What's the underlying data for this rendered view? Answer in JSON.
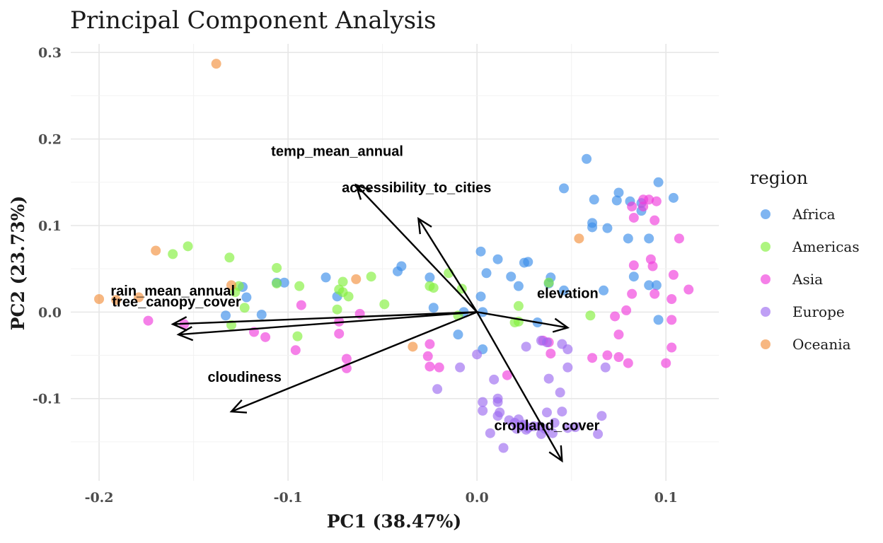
{
  "chart_data": {
    "type": "scatter",
    "title": "Principal Component Analysis",
    "xlabel": "PC1 (38.47%)",
    "ylabel": "PC2 (23.73%)",
    "xlim": [
      -0.215,
      0.128
    ],
    "ylim": [
      -0.195,
      0.31
    ],
    "x_ticks": [
      -0.2,
      -0.1,
      0.0,
      0.1
    ],
    "x_tick_labels": [
      "-0.2",
      "-0.1",
      "0.0",
      "0.1"
    ],
    "y_ticks": [
      -0.1,
      0.0,
      0.1,
      0.2,
      0.3
    ],
    "y_tick_labels": [
      "-0.1",
      "0.0",
      "0.1",
      "0.2",
      "0.3"
    ],
    "grid": true,
    "legend": {
      "title": "region",
      "position": "right"
    },
    "point_opacity": 0.65,
    "series": [
      {
        "name": "Africa",
        "color": "#3b8eea",
        "points": [
          [
            0.058,
            0.177
          ],
          [
            0.096,
            0.15
          ],
          [
            0.104,
            0.132
          ],
          [
            0.046,
            0.143
          ],
          [
            0.075,
            0.138
          ],
          [
            0.062,
            0.13
          ],
          [
            0.074,
            0.129
          ],
          [
            0.081,
            0.128
          ],
          [
            0.087,
            0.126
          ],
          [
            0.087,
            0.117
          ],
          [
            0.061,
            0.103
          ],
          [
            0.061,
            0.098
          ],
          [
            0.069,
            0.097
          ],
          [
            0.08,
            0.085
          ],
          [
            0.091,
            0.085
          ],
          [
            0.096,
            -0.009
          ],
          [
            0.002,
            0.07
          ],
          [
            0.011,
            0.061
          ],
          [
            0.005,
            0.045
          ],
          [
            0.025,
            0.057
          ],
          [
            0.027,
            0.058
          ],
          [
            0.039,
            0.04
          ],
          [
            -0.04,
            0.053
          ],
          [
            -0.042,
            0.047
          ],
          [
            -0.08,
            0.04
          ],
          [
            -0.025,
            0.04
          ],
          [
            -0.023,
            0.005
          ],
          [
            0.018,
            0.041
          ],
          [
            0.022,
            0.03
          ],
          [
            0.038,
            0.033
          ],
          [
            0.046,
            0.025
          ],
          [
            0.067,
            0.025
          ],
          [
            0.083,
            0.041
          ],
          [
            0.091,
            0.031
          ],
          [
            0.095,
            0.031
          ],
          [
            -0.074,
            0.018
          ],
          [
            -0.102,
            0.034
          ],
          [
            -0.106,
            0.034
          ],
          [
            -0.124,
            0.029
          ],
          [
            -0.133,
            -0.004
          ],
          [
            -0.114,
            -0.003
          ],
          [
            -0.122,
            0.017
          ],
          [
            -0.007,
            0.0
          ],
          [
            0.002,
            0.018
          ],
          [
            0.003,
            0.0
          ],
          [
            -0.01,
            -0.026
          ],
          [
            0.003,
            -0.043
          ],
          [
            0.032,
            -0.012
          ]
        ]
      },
      {
        "name": "Americas",
        "color": "#83f03c",
        "points": [
          [
            -0.161,
            0.067
          ],
          [
            -0.153,
            0.076
          ],
          [
            -0.131,
            0.063
          ],
          [
            -0.106,
            0.051
          ],
          [
            -0.106,
            0.033
          ],
          [
            -0.094,
            0.03
          ],
          [
            -0.071,
            0.035
          ],
          [
            -0.073,
            0.026
          ],
          [
            -0.071,
            0.023
          ],
          [
            -0.056,
            0.041
          ],
          [
            -0.068,
            0.018
          ],
          [
            -0.049,
            0.009
          ],
          [
            -0.025,
            0.03
          ],
          [
            -0.023,
            0.028
          ],
          [
            -0.015,
            0.045
          ],
          [
            -0.008,
            0.027
          ],
          [
            -0.01,
            -0.004
          ],
          [
            -0.126,
            0.03
          ],
          [
            -0.128,
            0.023
          ],
          [
            -0.123,
            0.005
          ],
          [
            -0.13,
            -0.015
          ],
          [
            -0.095,
            -0.028
          ],
          [
            -0.074,
            0.003
          ],
          [
            0.022,
            0.007
          ],
          [
            0.022,
            -0.011
          ],
          [
            0.02,
            -0.012
          ],
          [
            0.06,
            -0.004
          ],
          [
            0.038,
            0.034
          ]
        ]
      },
      {
        "name": "Asia",
        "color": "#f03cdc",
        "points": [
          [
            0.088,
            0.13
          ],
          [
            0.091,
            0.13
          ],
          [
            0.095,
            0.128
          ],
          [
            0.082,
            0.122
          ],
          [
            0.088,
            0.122
          ],
          [
            0.083,
            0.109
          ],
          [
            0.094,
            0.106
          ],
          [
            0.107,
            0.085
          ],
          [
            0.092,
            0.061
          ],
          [
            0.083,
            0.054
          ],
          [
            0.093,
            0.053
          ],
          [
            0.104,
            0.043
          ],
          [
            0.112,
            0.026
          ],
          [
            0.082,
            0.021
          ],
          [
            0.094,
            0.021
          ],
          [
            0.079,
            0.002
          ],
          [
            0.103,
            0.015
          ],
          [
            0.073,
            -0.005
          ],
          [
            0.103,
            -0.009
          ],
          [
            0.075,
            -0.026
          ],
          [
            0.103,
            -0.041
          ],
          [
            0.1,
            -0.059
          ],
          [
            0.061,
            -0.053
          ],
          [
            0.069,
            -0.05
          ],
          [
            0.075,
            -0.052
          ],
          [
            0.08,
            -0.059
          ],
          [
            0.038,
            -0.035
          ],
          [
            0.035,
            -0.033
          ],
          [
            0.039,
            -0.048
          ],
          [
            0.016,
            -0.073
          ],
          [
            -0.025,
            -0.037
          ],
          [
            -0.026,
            -0.051
          ],
          [
            -0.025,
            -0.063
          ],
          [
            -0.02,
            -0.064
          ],
          [
            -0.069,
            -0.054
          ],
          [
            -0.069,
            -0.065
          ],
          [
            -0.073,
            -0.025
          ],
          [
            -0.073,
            -0.011
          ],
          [
            -0.062,
            -0.002
          ],
          [
            -0.093,
            0.008
          ],
          [
            -0.096,
            -0.044
          ],
          [
            -0.112,
            -0.029
          ],
          [
            -0.118,
            -0.023
          ],
          [
            -0.155,
            -0.014
          ],
          [
            -0.174,
            -0.01
          ]
        ]
      },
      {
        "name": "Europe",
        "color": "#9d6cf0",
        "points": [
          [
            0.034,
            -0.033
          ],
          [
            0.037,
            -0.035
          ],
          [
            0.026,
            -0.04
          ],
          [
            0.045,
            -0.037
          ],
          [
            0.048,
            -0.043
          ],
          [
            0.048,
            -0.064
          ],
          [
            0.038,
            -0.077
          ],
          [
            0.044,
            -0.093
          ],
          [
            -0.021,
            -0.089
          ],
          [
            -0.009,
            -0.064
          ],
          [
            0.0,
            -0.049
          ],
          [
            0.009,
            -0.078
          ],
          [
            0.011,
            -0.1
          ],
          [
            0.011,
            -0.104
          ],
          [
            0.003,
            -0.104
          ],
          [
            0.003,
            -0.114
          ],
          [
            0.011,
            -0.12
          ],
          [
            0.012,
            -0.116
          ],
          [
            0.017,
            -0.125
          ],
          [
            0.02,
            -0.128
          ],
          [
            0.022,
            -0.124
          ],
          [
            0.024,
            -0.131
          ],
          [
            0.027,
            -0.134
          ],
          [
            0.025,
            -0.13
          ],
          [
            0.03,
            -0.132
          ],
          [
            0.033,
            -0.132
          ],
          [
            0.034,
            -0.141
          ],
          [
            0.036,
            -0.135
          ],
          [
            0.04,
            -0.14
          ],
          [
            0.041,
            -0.128
          ],
          [
            0.048,
            -0.134
          ],
          [
            0.066,
            -0.12
          ],
          [
            0.064,
            -0.141
          ],
          [
            0.052,
            -0.133
          ],
          [
            0.045,
            -0.115
          ],
          [
            0.037,
            -0.116
          ],
          [
            0.014,
            -0.157
          ],
          [
            0.007,
            -0.14
          ],
          [
            0.026,
            -0.136
          ],
          [
            0.021,
            -0.135
          ],
          [
            0.068,
            -0.064
          ]
        ]
      },
      {
        "name": "Oceania",
        "color": "#f2913d",
        "points": [
          [
            -0.138,
            0.287
          ],
          [
            -0.17,
            0.071
          ],
          [
            -0.13,
            0.031
          ],
          [
            -0.064,
            0.038
          ],
          [
            0.054,
            0.085
          ],
          [
            -0.2,
            0.015
          ],
          [
            -0.191,
            0.014
          ],
          [
            -0.179,
            0.017
          ],
          [
            -0.034,
            -0.04
          ]
        ]
      }
    ],
    "loadings": [
      {
        "name": "temp_mean_annual",
        "x": -0.064,
        "y": 0.147
      },
      {
        "name": "accessibility_to_cities",
        "x": -0.031,
        "y": 0.108
      },
      {
        "name": "elevation",
        "x": 0.048,
        "y": -0.018
      },
      {
        "name": "rain_mean_annual",
        "x": -0.158,
        "y": -0.026
      },
      {
        "name": "tree_canopy_cover",
        "x": -0.161,
        "y": -0.014
      },
      {
        "name": "cloudiness",
        "x": -0.13,
        "y": -0.115
      },
      {
        "name": "cropland_cover",
        "x": 0.045,
        "y": -0.172
      }
    ],
    "loading_labels": [
      {
        "name": "temp_mean_annual",
        "x": -0.074,
        "y": 0.186
      },
      {
        "name": "accessibility_to_cities",
        "x": -0.032,
        "y": 0.144
      },
      {
        "name": "elevation",
        "x": 0.048,
        "y": 0.022
      },
      {
        "name": "rain_mean_annual",
        "x": -0.161,
        "y": 0.025
      },
      {
        "name": "tree_canopy_cover",
        "x": -0.159,
        "y": 0.012
      },
      {
        "name": "cloudiness",
        "x": -0.123,
        "y": -0.075
      },
      {
        "name": "cropland_cover",
        "x": 0.037,
        "y": -0.131
      }
    ]
  }
}
